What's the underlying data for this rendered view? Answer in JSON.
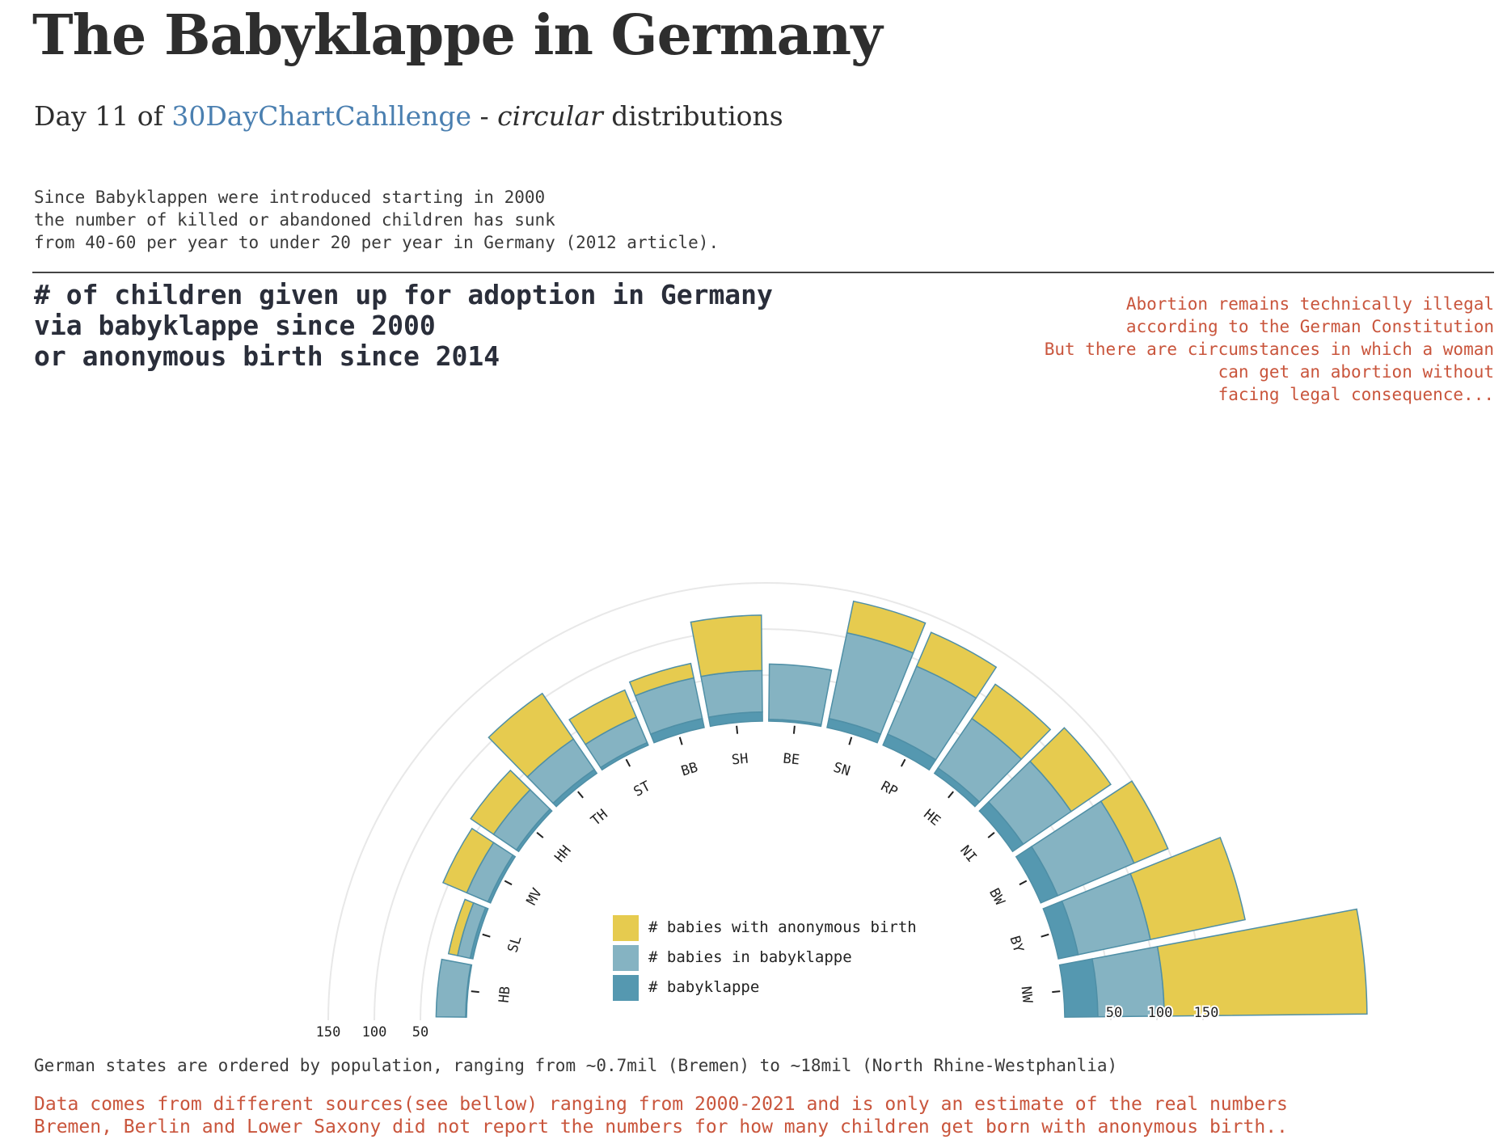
{
  "title": "The Babyklappe in Germany",
  "subtitle": {
    "prefix": "Day 11 of ",
    "link": "30DayChartCahllenge",
    "middle": " - ",
    "emph": "circular",
    "suffix": " distributions"
  },
  "intro": "Since Babyklappen were introduced starting in 2000\nthe number of killed or abandoned children has sunk\nfrom 40-60 per year to under 20 per year in Germany (2012 article).",
  "chart_heading": "# of children given up for adoption in Germany\nvia babyklappe since 2000\nor anonymous birth since 2014",
  "side_note": "Abortion remains technically illegal\naccording to the German Constitution\nBut there are circumstances in which a woman\ncan get an abortion without\nfacing legal consequence...",
  "caption": "German states are ordered by population, ranging from ~0.7mil (Bremen) to ~18mil (North Rhine-Westphanlia)",
  "notes": "Data comes from different sources(see bellow) ranging from 2000-2021 and is only an estimate of the real numbers\nBremen, Berlin and Lower Saxony did not report the numbers for how many children get born with anonymous birth..",
  "legend": [
    {
      "label": "# babies with anonymous birth",
      "color": "#e6cb4f"
    },
    {
      "label": "# babies in babyklappe",
      "color": "#85b3c2"
    },
    {
      "label": "# babyklappe",
      "color": "#5598b0"
    }
  ],
  "colors": {
    "anonymous_birth": "#e6cb4f",
    "babies_in_babyklappe": "#85b3c2",
    "babyklappe": "#5598b0",
    "outline": "#4f8fa6",
    "grid": "#e8e8e8"
  },
  "chart_data": {
    "type": "bar",
    "layout": "radial stacked bar (half circle)",
    "categories": [
      "HB",
      "SL",
      "MV",
      "HH",
      "TH",
      "ST",
      "BB",
      "SH",
      "BE",
      "SN",
      "RP",
      "HE",
      "NI",
      "BW",
      "BY",
      "NW"
    ],
    "series": [
      {
        "name": "# babyklappe",
        "values": [
          1,
          3,
          3,
          3,
          5,
          3,
          10,
          10,
          2,
          10,
          13,
          7,
          14,
          20,
          22,
          36
        ]
      },
      {
        "name": "# babies in babyklappe",
        "values": [
          32,
          14,
          25,
          30,
          40,
          30,
          45,
          45,
          60,
          95,
          80,
          65,
          63,
          90,
          80,
          72
        ]
      },
      {
        "name": "# babies with anonymous birth",
        "values": [
          0,
          10,
          28,
          30,
          60,
          32,
          16,
          60,
          0,
          35,
          40,
          45,
          52,
          40,
          105,
          220
        ]
      }
    ],
    "radial_ticks": [
      50,
      100,
      150
    ]
  }
}
